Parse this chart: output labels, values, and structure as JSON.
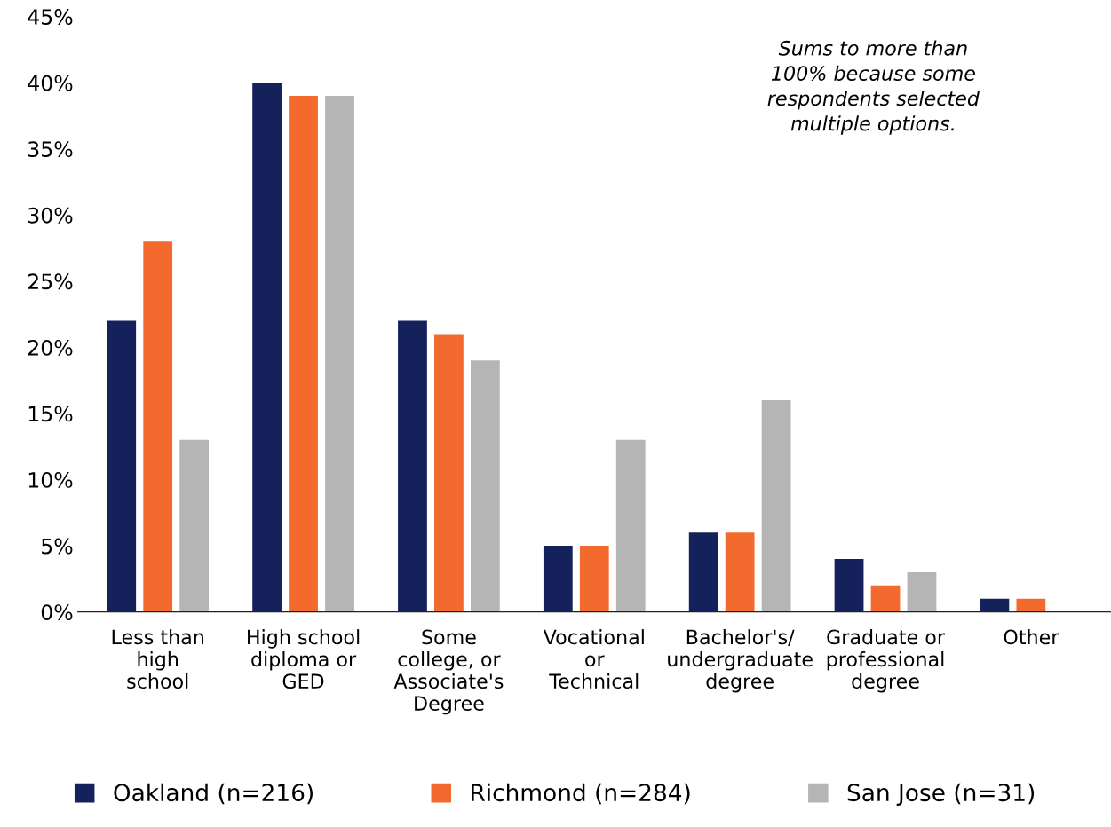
{
  "chart_data": {
    "type": "bar",
    "categories": [
      "Less than\nhigh\nschool",
      "High school\ndiploma or\nGED",
      "Some\ncollege, or\nAssociate's\nDegree",
      "Vocational\nor\nTechnical",
      "Bachelor's/\nundergraduate\ndegree",
      "Graduate or\nprofessional\ndegree",
      "Other"
    ],
    "series": [
      {
        "name": "Oakland (n=216)",
        "color": "#14215a",
        "values": [
          22,
          40,
          22,
          5,
          6,
          4,
          1
        ]
      },
      {
        "name": "Richmond (n=284)",
        "color": "#f26a2e",
        "values": [
          28,
          39,
          21,
          5,
          6,
          2,
          1
        ]
      },
      {
        "name": "San Jose (n=31)",
        "color": "#b5b5b5",
        "values": [
          13,
          39,
          19,
          13,
          16,
          3,
          0
        ]
      }
    ],
    "ylim": [
      0,
      45
    ],
    "yticks": [
      {
        "value": 0,
        "label": "0%"
      },
      {
        "value": 5,
        "label": "5%"
      },
      {
        "value": 10,
        "label": "10%"
      },
      {
        "value": 15,
        "label": "15%"
      },
      {
        "value": 20,
        "label": "20%"
      },
      {
        "value": 25,
        "label": "25%"
      },
      {
        "value": 30,
        "label": "30%"
      },
      {
        "value": 35,
        "label": "35%"
      },
      {
        "value": 40,
        "label": "40%"
      },
      {
        "value": 45,
        "label": "45%"
      }
    ],
    "annotations": [
      "Sums to more than\n100% because some\nrespondents selected\nmultiple options."
    ],
    "grid": false,
    "legend": "bottom"
  }
}
